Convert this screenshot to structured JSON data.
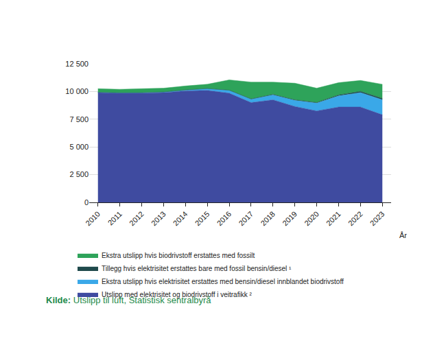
{
  "chart_data": {
    "type": "area",
    "stacked": true,
    "grid": true,
    "legend": "bottom left",
    "x_label": "År",
    "source_label": "Kilde:",
    "source": "Utslipp til luft, Statistisk sentralbyrå",
    "categories": [
      "2010",
      "2011",
      "2012",
      "2013",
      "2014",
      "2015",
      "2016",
      "2017",
      "2018",
      "2019",
      "2020",
      "2021",
      "2022",
      "2023"
    ],
    "ylim": [
      0,
      12500
    ],
    "yticks": [
      0,
      {
        "value": 2500,
        "label": "2 500"
      },
      {
        "value": 5000,
        "label": "5 000"
      },
      {
        "value": 7500,
        "label": "7 500"
      },
      {
        "value": 10000,
        "label": "10 000"
      },
      {
        "value": 12500,
        "label": "12 500"
      }
    ],
    "series": [
      {
        "name": "Utslipp med elektrisitet og biodrivstoff i veitrafikk ²",
        "color": "#3f4ba0",
        "values": [
          9900,
          9850,
          9850,
          9900,
          10050,
          10100,
          9850,
          9000,
          9250,
          8650,
          8250,
          8600,
          8600,
          7900
        ]
      },
      {
        "name": "Ekstra utslipp hvis elektrisitet erstattes med bensin/diesel innblandet biodrivstoff",
        "color": "#3aa8e8",
        "values": [
          20,
          30,
          40,
          50,
          80,
          150,
          250,
          300,
          450,
          550,
          700,
          1000,
          1300,
          1350
        ]
      },
      {
        "name": "Tillegg hvis elektrisitet erstattes bare med fossil bensin/diesel ¹",
        "color": "#1f4a4c",
        "values": [
          10,
          10,
          10,
          10,
          10,
          15,
          20,
          30,
          40,
          50,
          60,
          90,
          110,
          130
        ]
      },
      {
        "name": "Ekstra utslipp hvis biodrivstoff erstattes med fossilt",
        "color": "#2ea35a",
        "values": [
          320,
          310,
          350,
          340,
          360,
          390,
          930,
          1520,
          1110,
          1500,
          1290,
          1110,
          990,
          1270
        ]
      }
    ]
  }
}
